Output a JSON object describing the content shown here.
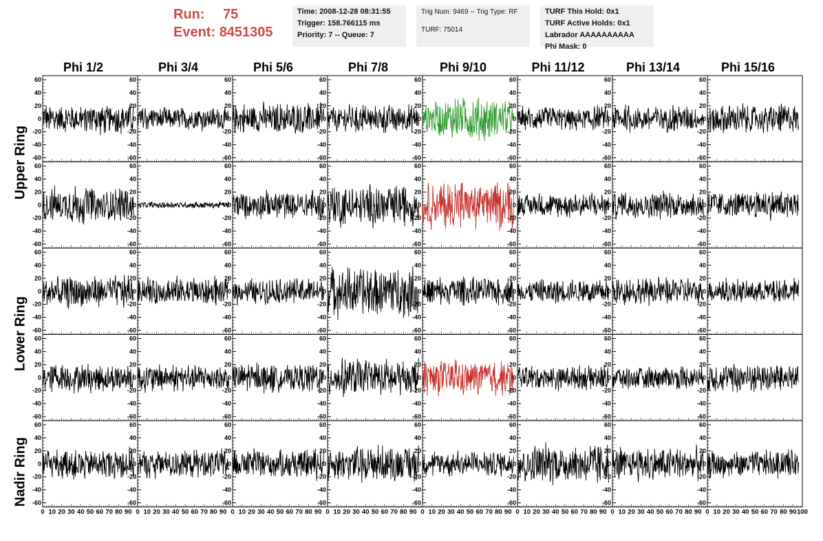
{
  "header": {
    "run_label": "Run:",
    "run_value": "75",
    "event_label": "Event:",
    "event_value": "8451305"
  },
  "info_time": {
    "time": "Time: 2008-12-28 08:31:55",
    "trigger": "Trigger: 158.766115 ms",
    "priority": "Priority: 7 -- Queue: 7"
  },
  "info_trig": {
    "trig": "Trig Num: 9469 -- Trig Type: RF",
    "turf": "TURF: 75014"
  },
  "info_turf": {
    "hold": "TURF This Hold: 0x1",
    "active": "TURF Active Holds: 0x1",
    "labrador": "Labrador AAAAAAAAAA",
    "phimask": "Phi Mask: 0"
  },
  "columns": [
    "Phi 1/2",
    "Phi 3/4",
    "Phi 5/6",
    "Phi 7/8",
    "Phi 9/10",
    "Phi 11/12",
    "Phi 13/14",
    "Phi 15/16"
  ],
  "rings": [
    "Upper Ring",
    "Lower Ring",
    "Nadir Ring"
  ],
  "colors": {
    "normal": "#000000",
    "green": "#2e9a2e",
    "red": "#c8302e",
    "title_red": "#cf4a44"
  },
  "chart_data": {
    "type": "line",
    "rows": 5,
    "cols": 8,
    "xlim": [
      0,
      100
    ],
    "ylim": [
      -60,
      60
    ],
    "yticks": [
      -60,
      -40,
      -20,
      0,
      20,
      40,
      60
    ],
    "xticks": [
      0,
      10,
      20,
      30,
      40,
      50,
      60,
      70,
      80,
      90,
      100
    ],
    "trace_x_range": [
      0,
      96
    ],
    "panel_amplitudes": [
      [
        18,
        14,
        20,
        17,
        22,
        15,
        17,
        19
      ],
      [
        22,
        4,
        18,
        26,
        30,
        15,
        17,
        18
      ],
      [
        20,
        18,
        16,
        30,
        18,
        15,
        17,
        15
      ],
      [
        18,
        17,
        18,
        22,
        22,
        15,
        15,
        18
      ],
      [
        19,
        18,
        18,
        22,
        16,
        25,
        20,
        17
      ]
    ],
    "highlights": [
      {
        "row": 0,
        "col": 4,
        "color": "green"
      },
      {
        "row": 1,
        "col": 4,
        "color": "red"
      },
      {
        "row": 3,
        "col": 4,
        "color": "red"
      }
    ]
  }
}
